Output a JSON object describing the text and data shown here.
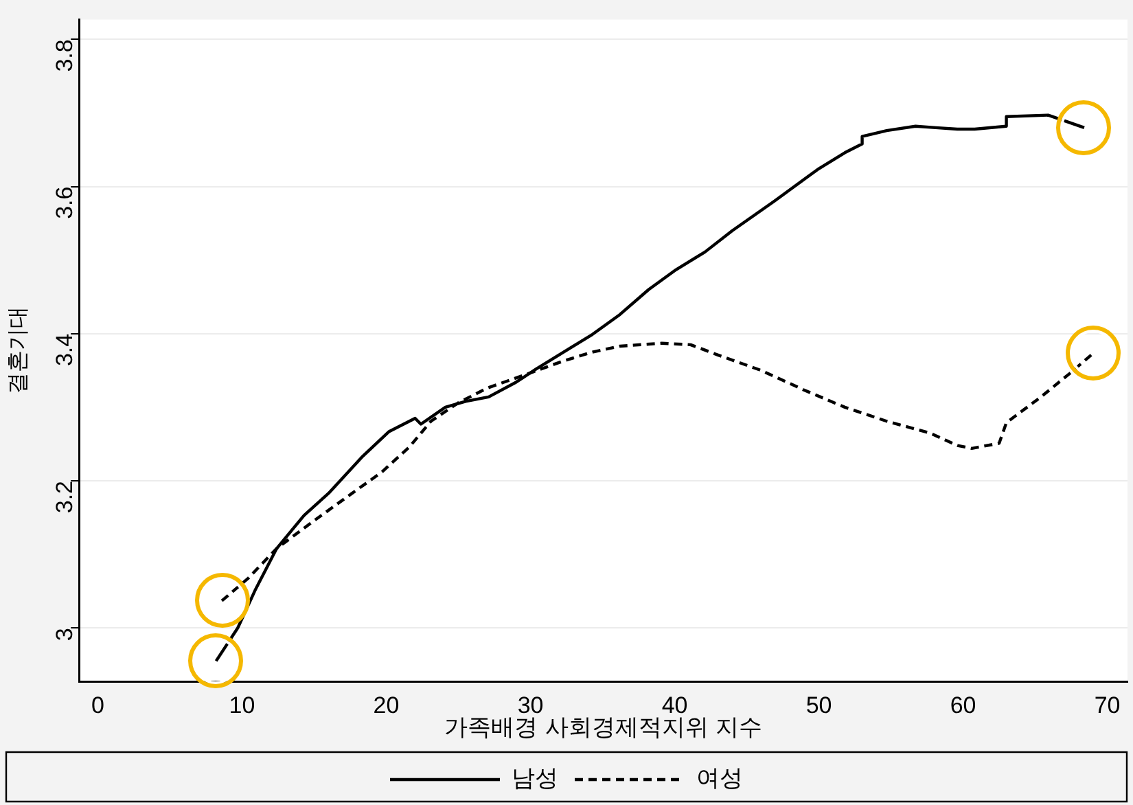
{
  "chart_data": {
    "type": "line",
    "xlabel": "가족배경 사회경제적지위 지수",
    "ylabel": "결혼기대",
    "xlim": [
      -1.3,
      71.4
    ],
    "xticks": [
      0,
      10,
      20,
      30,
      40,
      50,
      60,
      70
    ],
    "ylim": [
      2.927,
      3.827
    ],
    "yticks": [
      3,
      3.2,
      3.4,
      3.6,
      3.8
    ],
    "grid": "y",
    "legend": "bottom",
    "marker": "none",
    "series": [
      {
        "name": "남성",
        "color": "#000000",
        "line_style": "solid",
        "x": [
          8.2,
          9.7,
          10.9,
          12.4,
          14.3,
          16.0,
          18.3,
          20.2,
          22.0,
          22.4,
          24.1,
          25.5,
          27.1,
          29.0,
          30.4,
          32.8,
          34.3,
          36.2,
          38.2,
          40.1,
          42.1,
          44.0,
          46.9,
          49.9,
          51.8,
          53.0,
          53.0,
          54.7,
          56.7,
          58.1,
          59.6,
          60.8,
          63.0,
          63.0,
          65.9,
          68.4
        ],
        "values": [
          2.955,
          3.0,
          3.051,
          3.108,
          3.153,
          3.183,
          3.232,
          3.267,
          3.285,
          3.277,
          3.3,
          3.308,
          3.314,
          3.334,
          3.352,
          3.381,
          3.399,
          3.426,
          3.46,
          3.487,
          3.511,
          3.54,
          3.58,
          3.623,
          3.646,
          3.658,
          3.668,
          3.676,
          3.682,
          3.68,
          3.678,
          3.678,
          3.682,
          3.695,
          3.697,
          3.68
        ]
      },
      {
        "name": "여성",
        "color": "#000000",
        "line_style": "dashed",
        "x": [
          8.6,
          10.4,
          12.4,
          14.8,
          17.2,
          19.7,
          21.6,
          23.1,
          25.0,
          27.0,
          29.9,
          32.3,
          34.3,
          36.2,
          39.1,
          41.1,
          43.0,
          46.0,
          48.9,
          51.8,
          54.7,
          57.7,
          59.6,
          60.6,
          62.5,
          63.0,
          65.4,
          67.4,
          69.0
        ],
        "values": [
          3.037,
          3.067,
          3.108,
          3.143,
          3.177,
          3.212,
          3.246,
          3.281,
          3.306,
          3.326,
          3.346,
          3.363,
          3.375,
          3.383,
          3.387,
          3.385,
          3.371,
          3.35,
          3.324,
          3.3,
          3.281,
          3.265,
          3.248,
          3.244,
          3.251,
          3.279,
          3.314,
          3.346,
          3.373
        ]
      }
    ]
  }
}
